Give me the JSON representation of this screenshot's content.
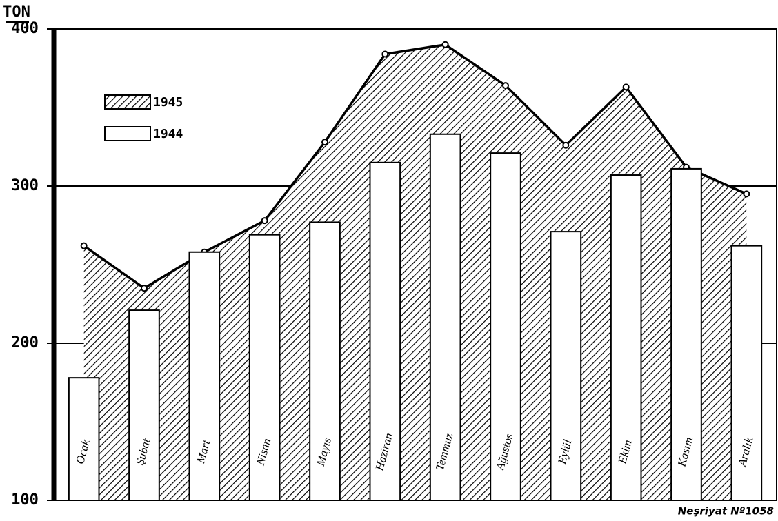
{
  "chart_data": {
    "type": "bar",
    "y_label": "TON",
    "footnote": "Neşriyat Nº1058",
    "categories": [
      "Ocak",
      "Şubat",
      "Mart",
      "Nisan",
      "Mayıs",
      "Haziran",
      "Temmuz",
      "Ağustos",
      "Eylül",
      "Ekim",
      "Kasım",
      "Aralık"
    ],
    "series": [
      {
        "name": "1945",
        "type": "area",
        "color": "#000000",
        "values": [
          262,
          235,
          258,
          278,
          328,
          384,
          390,
          364,
          326,
          363,
          312,
          295
        ]
      },
      {
        "name": "1944",
        "type": "bar",
        "color": "#ffffff",
        "values": [
          178,
          221,
          258,
          269,
          277,
          315,
          333,
          321,
          271,
          307,
          311,
          262
        ]
      }
    ],
    "ylim": [
      100,
      400
    ],
    "yticks": [
      100,
      200,
      300,
      400
    ],
    "grid": true,
    "legend": "upper left"
  }
}
